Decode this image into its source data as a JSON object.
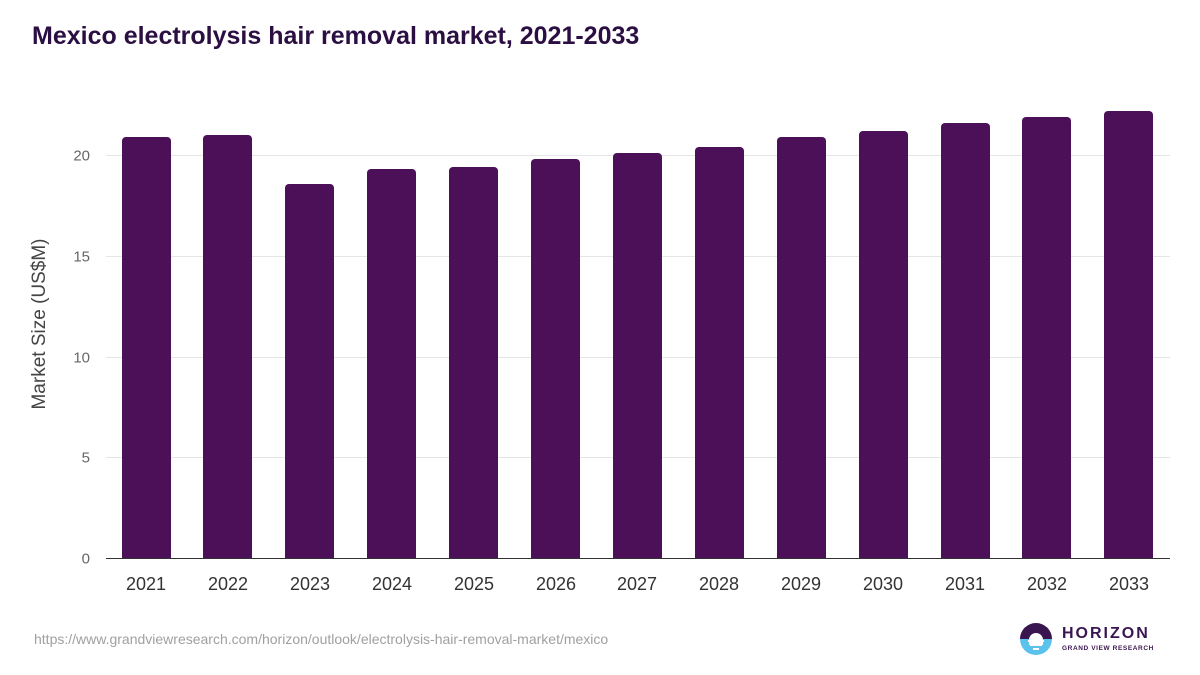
{
  "header": {
    "title": "Mexico electrolysis hair removal market, 2021-2033"
  },
  "chart_data": {
    "type": "bar",
    "title": "Mexico electrolysis hair removal market, 2021-2033",
    "xlabel": "",
    "ylabel": "Market Size (US$M)",
    "categories": [
      "2021",
      "2022",
      "2023",
      "2024",
      "2025",
      "2026",
      "2027",
      "2028",
      "2029",
      "2030",
      "2031",
      "2032",
      "2033"
    ],
    "values": [
      20.9,
      21.0,
      18.6,
      19.3,
      19.4,
      19.8,
      20.1,
      20.4,
      20.9,
      21.2,
      21.6,
      21.9,
      22.2
    ],
    "ylim": [
      0,
      25
    ],
    "yticks": [
      "0",
      "5",
      "10",
      "15",
      "20"
    ],
    "grid": true,
    "legend": "none",
    "bar_color": "#4b1057"
  },
  "footer": {
    "source_url": "https://www.grandviewresearch.com/horizon/outlook/electrolysis-hair-removal-market/mexico",
    "logo_main": "HORIZON",
    "logo_sub": "GRAND VIEW RESEARCH"
  },
  "colors": {
    "title": "#2b0f42",
    "bar": "#4b1057",
    "logo_dark": "#3a1650",
    "logo_light": "#5bc2ec"
  }
}
